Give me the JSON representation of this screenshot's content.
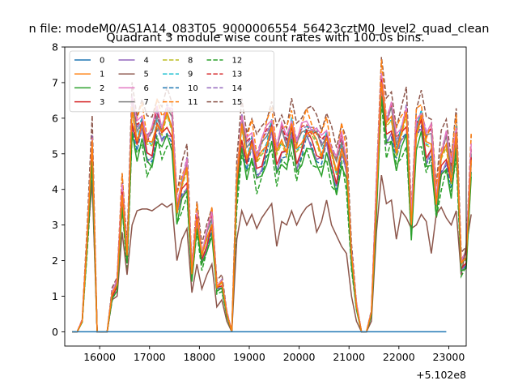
{
  "chart_data": {
    "type": "line",
    "suptitle": "n file: modeM0/AS1A14_083T05_9000006554_56423cztM0_level2_quad_clean",
    "title": "Quadrant 3 module wise count rates with 100.0s bins.",
    "xlabel": "",
    "ylabel": "",
    "x_offset_label": "+5.102e8",
    "xlim": [
      15300,
      23350
    ],
    "ylim": [
      -0.4,
      8
    ],
    "xticks": [
      16000,
      17000,
      18000,
      19000,
      20000,
      21000,
      22000,
      23000
    ],
    "yticks": [
      0,
      1,
      2,
      3,
      4,
      5,
      6,
      7,
      8
    ],
    "grid": false,
    "legend_position": "top-left",
    "x_start": 15450,
    "x_step": 100,
    "baseline_offsets": [
      0,
      0.2,
      -0.35,
      0.02,
      -0.1,
      -1.35,
      0.5,
      0.35,
      0.1,
      0.25,
      -0.15,
      0.6,
      -0.45,
      0.4,
      0.45,
      0.9
    ],
    "series": [
      {
        "name": "0",
        "color": "#1f77b4",
        "dash": false,
        "values": [
          0,
          0,
          0,
          0,
          0,
          0,
          0,
          0,
          0,
          0,
          0,
          0,
          0,
          0,
          0,
          0,
          0,
          0,
          0,
          0,
          0,
          0,
          0,
          0,
          0,
          0,
          0,
          0,
          0,
          0,
          0,
          0,
          0,
          0,
          0,
          0,
          0,
          0,
          0,
          0,
          0,
          0,
          0,
          0,
          0,
          0,
          0,
          0,
          0,
          0,
          0,
          0,
          0,
          0,
          0,
          0,
          0,
          0,
          0,
          0,
          0,
          0,
          0,
          0,
          0,
          0,
          0,
          0,
          0,
          0,
          0,
          0,
          0,
          0,
          0,
          0
        ]
      },
      {
        "name": "1",
        "color": "#ff7f0e",
        "dash": false
      },
      {
        "name": "2",
        "color": "#2ca02c",
        "dash": false
      },
      {
        "name": "3",
        "color": "#d62728",
        "dash": false
      },
      {
        "name": "4",
        "color": "#9467bd",
        "dash": false
      },
      {
        "name": "5",
        "color": "#8c564b",
        "dash": false
      },
      {
        "name": "6",
        "color": "#e377c2",
        "dash": false
      },
      {
        "name": "7",
        "color": "#7f7f7f",
        "dash": false
      },
      {
        "name": "8",
        "color": "#bcbd22",
        "dash": true
      },
      {
        "name": "9",
        "color": "#17becf",
        "dash": true
      },
      {
        "name": "10",
        "color": "#1f77b4",
        "dash": true
      },
      {
        "name": "11",
        "color": "#ff7f0e",
        "dash": true
      },
      {
        "name": "12",
        "color": "#2ca02c",
        "dash": true
      },
      {
        "name": "13",
        "color": "#d62728",
        "dash": true
      },
      {
        "name": "14",
        "color": "#9467bd",
        "dash": true
      },
      {
        "name": "15",
        "color": "#8c564b",
        "dash": true
      }
    ],
    "base_profile": [
      0,
      0,
      0.3,
      2.5,
      5.0,
      0,
      0,
      0,
      1.0,
      1.3,
      3.8,
      2.0,
      6.0,
      5.3,
      5.7,
      5.0,
      5.1,
      5.8,
      5.4,
      5.8,
      5.6,
      3.3,
      3.9,
      4.3,
      1.6,
      3.1,
      2.0,
      2.5,
      3.0,
      1.2,
      1.3,
      0.5,
      0,
      4.0,
      5.5,
      4.8,
      5.2,
      4.5,
      4.8,
      5.2,
      5.6,
      4.7,
      5.2,
      5.0,
      5.6,
      4.8,
      5.2,
      5.5,
      5.3,
      5.1,
      4.9,
      5.3,
      4.7,
      4.3,
      5.1,
      4.5,
      2.0,
      0.7,
      0,
      0,
      0.5,
      3.7,
      6.9,
      5.5,
      5.8,
      5.0,
      5.4,
      5.8,
      2.9,
      5.5,
      5.8,
      5.0,
      5.2,
      3.5,
      4.6,
      5.0,
      4.2,
      5.4,
      1.8,
      2.0,
      4.8
    ],
    "ch5_profile": [
      0,
      0,
      0.3,
      2.5,
      4.2,
      0,
      0,
      0,
      0.9,
      1.0,
      2.8,
      1.6,
      3.0,
      3.4,
      3.45,
      3.45,
      3.4,
      3.5,
      3.6,
      3.5,
      3.6,
      2.0,
      2.6,
      2.9,
      1.1,
      1.9,
      1.2,
      1.6,
      1.9,
      0.7,
      0.9,
      0.3,
      0,
      2.6,
      3.4,
      3.0,
      3.3,
      2.9,
      3.2,
      3.4,
      3.6,
      2.4,
      3.1,
      3.0,
      3.4,
      3.0,
      3.3,
      3.5,
      3.6,
      2.8,
      3.1,
      3.7,
      3.0,
      2.7,
      2.4,
      2.2,
      1.0,
      0.3,
      0,
      0,
      0.3,
      2.8,
      4.4,
      3.6,
      3.7,
      2.6,
      3.4,
      3.2,
      2.9,
      3.0,
      3.3,
      3.1,
      2.2,
      3.3,
      3.5,
      3.2,
      3.0,
      3.4,
      1.6,
      2.4,
      3.3
    ]
  }
}
